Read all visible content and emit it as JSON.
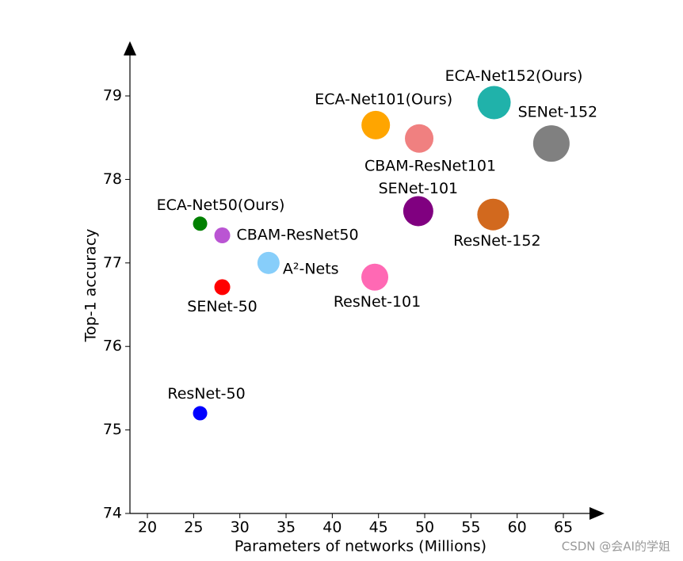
{
  "chart_data": {
    "type": "scatter",
    "xlabel": "Parameters of networks (Millions)",
    "ylabel": "Top-1 accuracy",
    "xlim": [
      18,
      69
    ],
    "ylim": [
      74,
      79.6
    ],
    "xticks": [
      20,
      25,
      30,
      35,
      40,
      45,
      50,
      55,
      60,
      65
    ],
    "yticks": [
      74,
      75,
      76,
      77,
      78,
      79
    ],
    "series": [
      {
        "name": "ECA-Net50(Ours)",
        "color": "#008000",
        "x": [
          25.7
        ],
        "values": [
          77.47
        ],
        "sizes": [
          9
        ]
      },
      {
        "name": "CBAM-ResNet50",
        "color": "#ba55d3",
        "x": [
          28.1
        ],
        "values": [
          77.33
        ],
        "sizes": [
          10
        ]
      },
      {
        "name": "A²-Nets",
        "color": "#87cefa",
        "x": [
          33.1
        ],
        "values": [
          77.0
        ],
        "sizes": [
          14
        ]
      },
      {
        "name": "SENet-50",
        "color": "#ff0000",
        "x": [
          28.1
        ],
        "values": [
          76.71
        ],
        "sizes": [
          10
        ]
      },
      {
        "name": "ResNet-50",
        "color": "#0000ff",
        "x": [
          25.7
        ],
        "values": [
          75.2
        ],
        "sizes": [
          9
        ]
      },
      {
        "name": "ResNet-101",
        "color": "#ff69b4",
        "x": [
          44.6
        ],
        "values": [
          76.83
        ],
        "sizes": [
          17
        ]
      },
      {
        "name": "SENet-101",
        "color": "#800080",
        "x": [
          49.3
        ],
        "values": [
          77.62
        ],
        "sizes": [
          19
        ]
      },
      {
        "name": "ResNet-152",
        "color": "#d2691e",
        "x": [
          57.4
        ],
        "values": [
          77.58
        ],
        "sizes": [
          20
        ]
      },
      {
        "name": "ECA-Net101(Ours)",
        "color": "#ffa500",
        "x": [
          44.7
        ],
        "values": [
          78.65
        ],
        "sizes": [
          18
        ]
      },
      {
        "name": "CBAM-ResNet101",
        "color": "#f08080",
        "x": [
          49.4
        ],
        "values": [
          78.49
        ],
        "sizes": [
          18
        ]
      },
      {
        "name": "ECA-Net152(Ours)",
        "color": "#20b2aa",
        "x": [
          57.5
        ],
        "values": [
          78.92
        ],
        "sizes": [
          21
        ]
      },
      {
        "name": "SENet-152",
        "color": "#808080",
        "x": [
          63.7
        ],
        "values": [
          78.43
        ],
        "sizes": [
          23
        ]
      }
    ]
  },
  "watermark": "CSDN @会AI的学姐"
}
